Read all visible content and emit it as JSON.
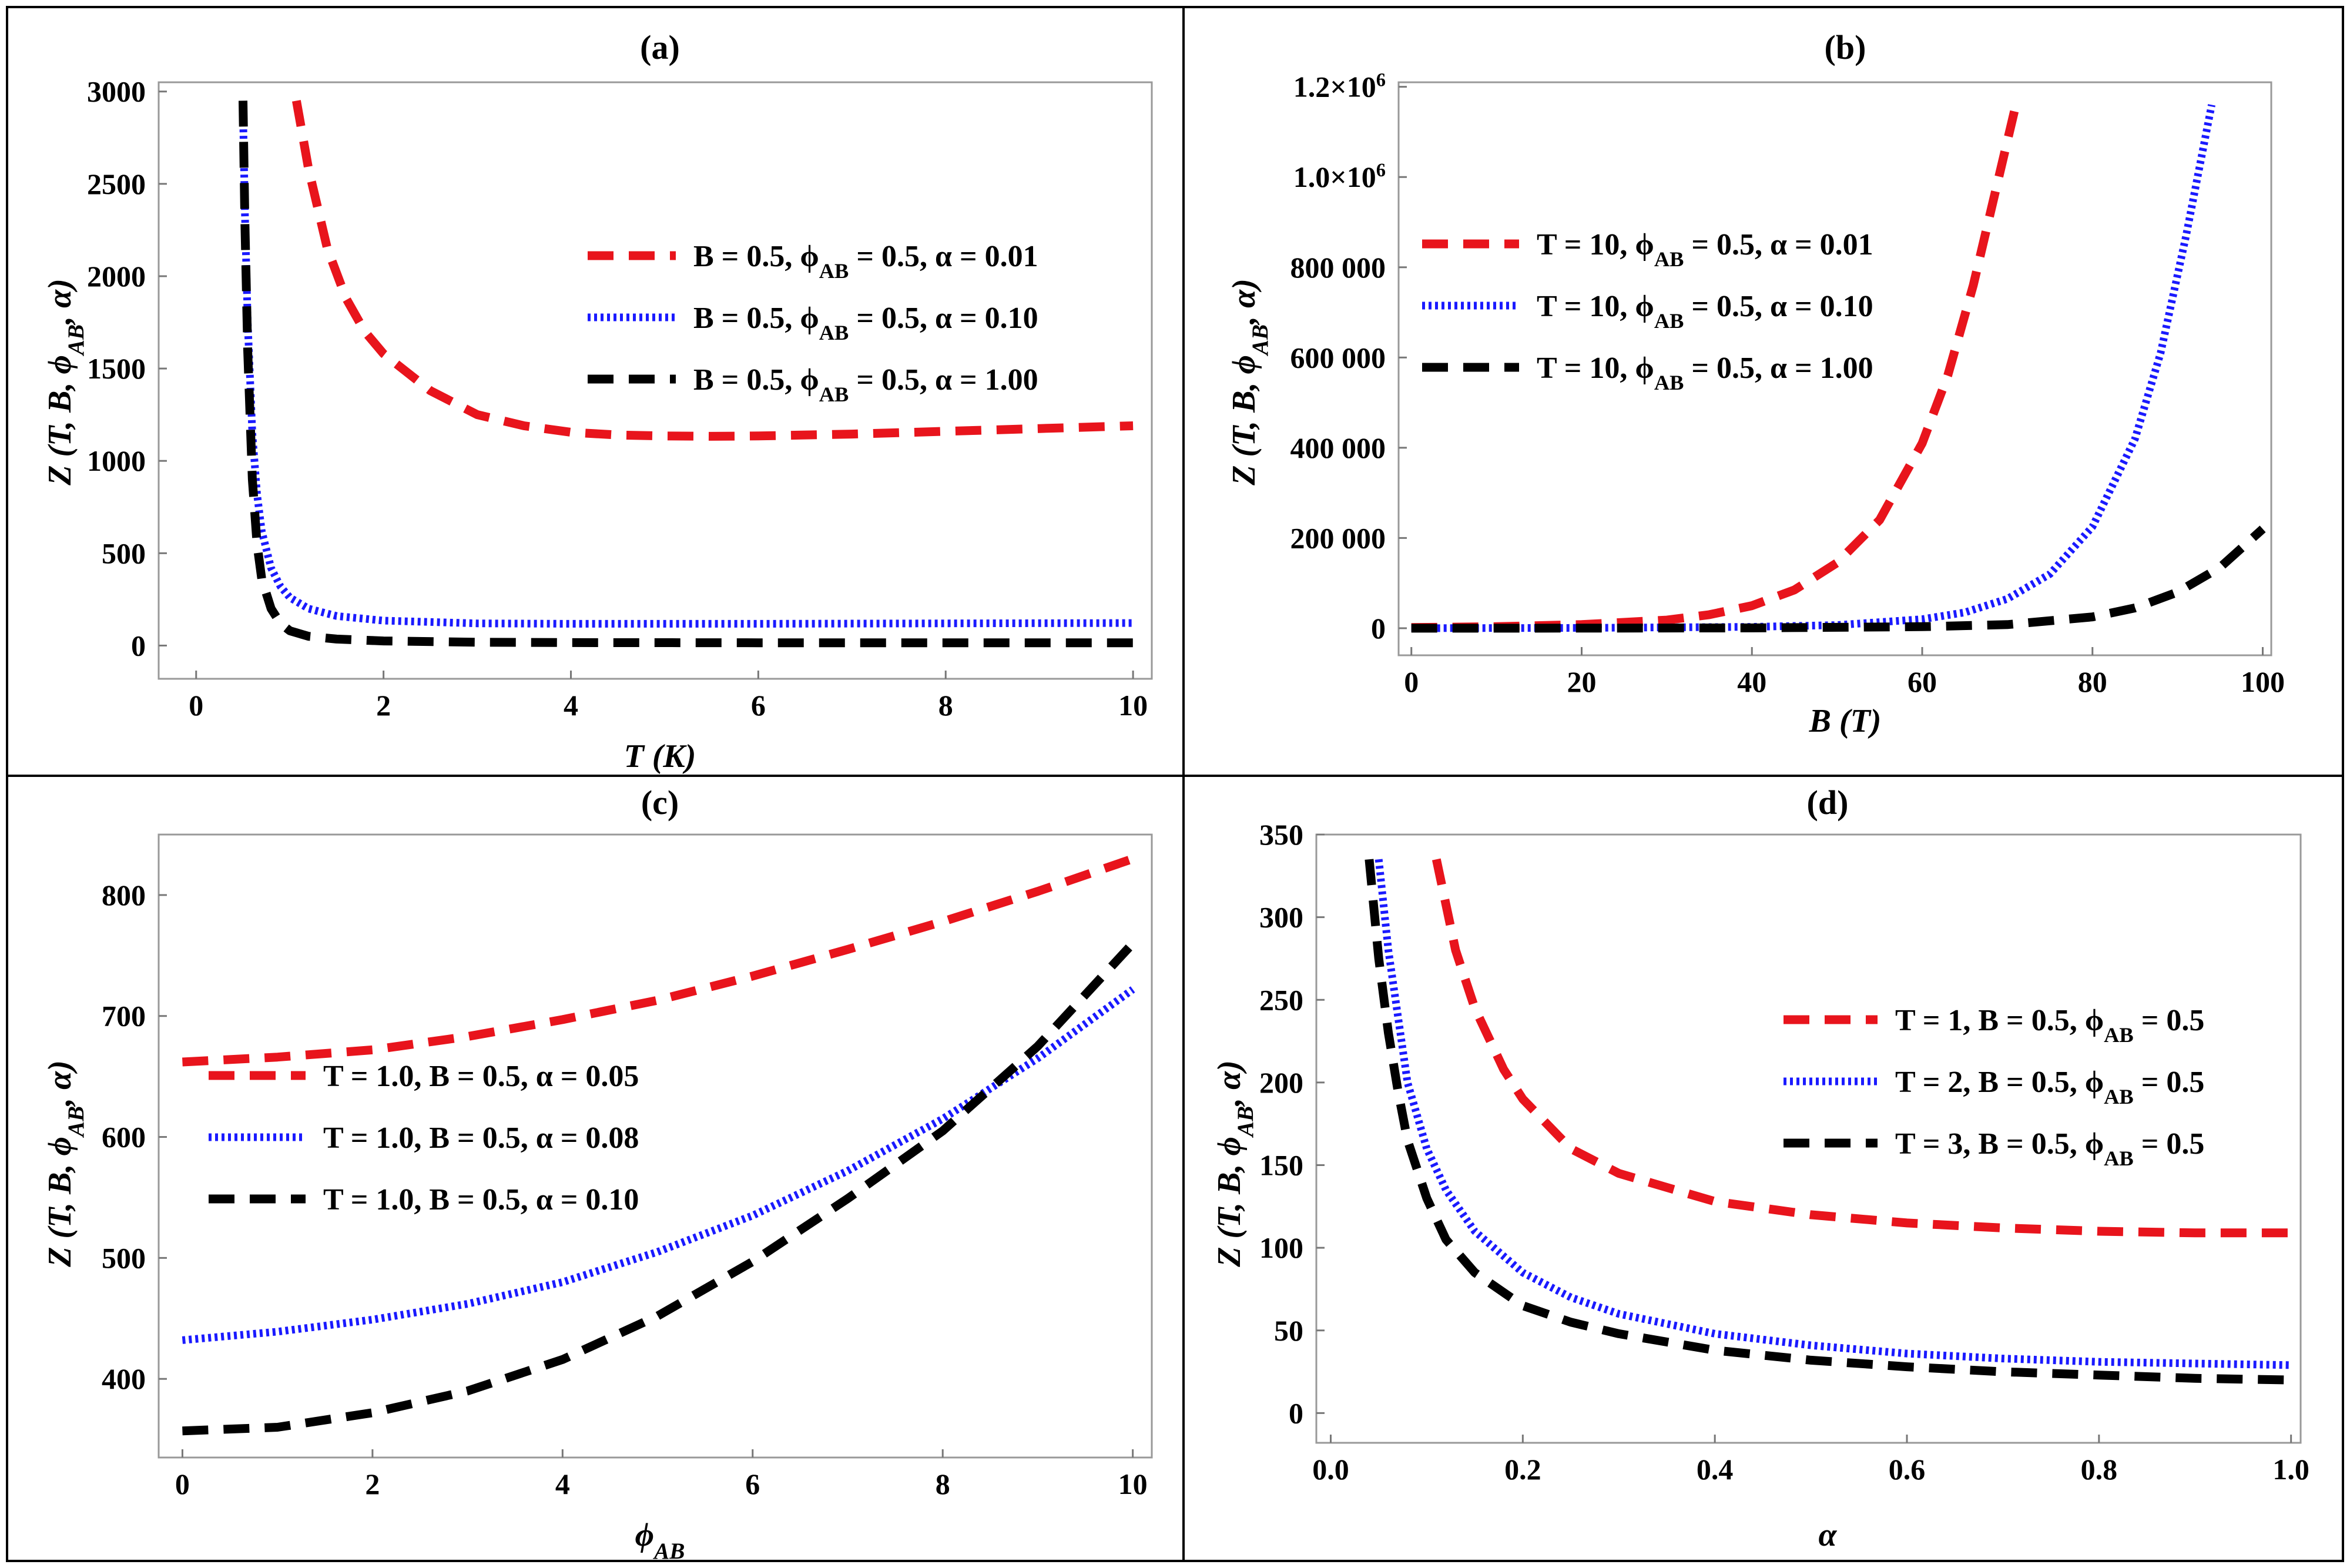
{
  "colors": {
    "red": "#e8141c",
    "blue": "#1a1aff",
    "black": "#000000"
  },
  "chart_data": [
    {
      "type": "line",
      "title": "(a)",
      "xlabel": "T (K)",
      "ylabel": "Z (T, B, ϕAB, α)",
      "xlim": [
        -0.4,
        10.2
      ],
      "ylim": [
        -180,
        3050
      ],
      "xticks": [
        0,
        2,
        4,
        6,
        8,
        10
      ],
      "yticks": [
        0,
        500,
        1000,
        1500,
        2000,
        2500,
        3000
      ],
      "ytick_labels": [
        "0",
        "500",
        "1000",
        "1500",
        "2000",
        "2500",
        "3000"
      ],
      "legend_position": "upper-right",
      "series": [
        {
          "name": "B = 0.5, ϕAB = 0.5, α = 0.01",
          "color": "red",
          "style": "dashed",
          "x": [
            1.07,
            1.2,
            1.4,
            1.6,
            1.8,
            2.0,
            2.5,
            3.0,
            3.5,
            4.0,
            4.5,
            5.0,
            5.5,
            6.0,
            7.0,
            8.0,
            9.0,
            10.0
          ],
          "y": [
            2950,
            2580,
            2150,
            1880,
            1700,
            1580,
            1380,
            1250,
            1190,
            1155,
            1140,
            1135,
            1133,
            1135,
            1145,
            1160,
            1175,
            1190
          ]
        },
        {
          "name": "B = 0.5, ϕAB = 0.5, α = 0.10",
          "color": "blue",
          "style": "dotted",
          "x": [
            0.5,
            0.52,
            0.55,
            0.6,
            0.65,
            0.7,
            0.8,
            0.9,
            1.0,
            1.2,
            1.5,
            2.0,
            3.0,
            4.0,
            6.0,
            8.0,
            10.0
          ],
          "y": [
            2900,
            2350,
            1750,
            1150,
            820,
            620,
            420,
            320,
            260,
            200,
            160,
            135,
            120,
            118,
            118,
            120,
            122
          ]
        },
        {
          "name": "B = 0.5, ϕAB = 0.5, α = 1.00",
          "color": "black",
          "style": "dashed",
          "x": [
            0.5,
            0.52,
            0.55,
            0.6,
            0.65,
            0.7,
            0.8,
            0.9,
            1.0,
            1.2,
            1.5,
            2.0,
            3.0,
            4.0,
            6.0,
            8.0,
            10.0
          ],
          "y": [
            2950,
            2300,
            1600,
            900,
            550,
            360,
            200,
            120,
            80,
            50,
            35,
            25,
            18,
            16,
            15,
            15,
            15
          ]
        }
      ]
    },
    {
      "type": "line",
      "title": "(b)",
      "xlabel": "B (T)",
      "ylabel": "Z (T, B, ϕAB, α)",
      "xlim": [
        -1.5,
        101
      ],
      "ylim": [
        -60000,
        1210000
      ],
      "xticks": [
        0,
        20,
        40,
        60,
        80,
        100
      ],
      "yticks": [
        0,
        200000,
        400000,
        600000,
        800000,
        1000000,
        1200000
      ],
      "ytick_labels": [
        "0",
        "200 000",
        "400 000",
        "600 000",
        "800 000",
        "1.0×10",
        "1.2×10"
      ],
      "ytick_exponent": "6",
      "legend_position": "upper-left",
      "series": [
        {
          "name": "T = 10, ϕAB = 0.5, α = 0.01",
          "color": "red",
          "style": "dashed",
          "x": [
            0,
            10,
            20,
            30,
            35,
            40,
            45,
            50,
            55,
            60,
            63,
            66,
            69,
            71
          ],
          "y": [
            1500,
            3500,
            8000,
            18000,
            30000,
            50000,
            85000,
            145000,
            240000,
            410000,
            560000,
            760000,
            1000000,
            1160000
          ]
        },
        {
          "name": "T = 10, ϕAB = 0.5, α = 0.10",
          "color": "blue",
          "style": "dotted",
          "x": [
            0,
            20,
            40,
            50,
            60,
            65,
            70,
            75,
            80,
            85,
            88,
            91,
            94
          ],
          "y": [
            0,
            700,
            3000,
            7000,
            20000,
            35000,
            65000,
            120000,
            225000,
            420000,
            610000,
            870000,
            1160000
          ]
        },
        {
          "name": "T = 10, ϕAB = 0.5, α = 1.00",
          "color": "black",
          "style": "dashed",
          "x": [
            0,
            20,
            40,
            60,
            70,
            80,
            85,
            90,
            95,
            100
          ],
          "y": [
            0,
            150,
            700,
            3500,
            8000,
            25000,
            45000,
            80000,
            135000,
            220000
          ]
        }
      ]
    },
    {
      "type": "line",
      "title": "(c)",
      "xlabel": "ϕAB",
      "ylabel": "Z (T, B, ϕAB, α)",
      "xlim": [
        -0.25,
        10.2
      ],
      "ylim": [
        335,
        850
      ],
      "xticks": [
        0,
        2,
        4,
        6,
        8,
        10
      ],
      "yticks": [
        400,
        500,
        600,
        700,
        800
      ],
      "ytick_labels": [
        "400",
        "500",
        "600",
        "700",
        "800"
      ],
      "legend_position": "center-left",
      "series": [
        {
          "name": "T = 1.0, B = 0.5, α = 0.05",
          "color": "red",
          "style": "dashed",
          "x": [
            0,
            1,
            2,
            3,
            4,
            5,
            6,
            7,
            8,
            9,
            10
          ],
          "y": [
            662,
            666,
            672,
            683,
            697,
            713,
            733,
            755,
            778,
            803,
            830
          ]
        },
        {
          "name": "T = 1.0, B = 0.5, α = 0.08",
          "color": "blue",
          "style": "dotted",
          "x": [
            0,
            1,
            2,
            3,
            4,
            5,
            6,
            7,
            8,
            9,
            10
          ],
          "y": [
            432,
            439,
            449,
            462,
            480,
            505,
            535,
            572,
            615,
            665,
            722
          ]
        },
        {
          "name": "T = 1.0, B = 0.5, α = 0.10",
          "color": "black",
          "style": "dashed",
          "x": [
            0,
            1,
            2,
            3,
            4,
            5,
            6,
            7,
            8,
            9,
            10
          ],
          "y": [
            357,
            360,
            372,
            390,
            416,
            452,
            497,
            549,
            605,
            675,
            760
          ]
        }
      ]
    },
    {
      "type": "line",
      "title": "(d)",
      "xlabel": "α",
      "ylabel": "Z (T, B, ϕAB, α)",
      "xlim": [
        -0.015,
        1.01
      ],
      "ylim": [
        -18,
        350
      ],
      "xticks": [
        0.0,
        0.2,
        0.4,
        0.6,
        0.8,
        1.0
      ],
      "xtick_labels": [
        "0.0",
        "0.2",
        "0.4",
        "0.6",
        "0.8",
        "1.0"
      ],
      "yticks": [
        0,
        50,
        100,
        150,
        200,
        250,
        300,
        350
      ],
      "ytick_labels": [
        "0",
        "50",
        "100",
        "150",
        "200",
        "250",
        "300",
        "350"
      ],
      "legend_position": "right",
      "series": [
        {
          "name": "T = 1, B = 0.5, ϕAB = 0.5",
          "color": "red",
          "style": "dashed",
          "x": [
            0.11,
            0.13,
            0.15,
            0.18,
            0.2,
            0.25,
            0.3,
            0.4,
            0.5,
            0.6,
            0.7,
            0.8,
            0.9,
            1.0
          ],
          "y": [
            335,
            280,
            245,
            208,
            190,
            160,
            145,
            128,
            120,
            115,
            112,
            110,
            109,
            109
          ]
        },
        {
          "name": "T = 2, B = 0.5, ϕAB = 0.5",
          "color": "blue",
          "style": "dotted",
          "x": [
            0.05,
            0.06,
            0.07,
            0.08,
            0.1,
            0.12,
            0.15,
            0.2,
            0.25,
            0.3,
            0.4,
            0.5,
            0.6,
            0.7,
            0.8,
            0.9,
            1.0
          ],
          "y": [
            335,
            280,
            240,
            200,
            160,
            135,
            110,
            85,
            70,
            60,
            48,
            41,
            36,
            33,
            31,
            30,
            29
          ]
        },
        {
          "name": "T = 3, B = 0.5, ϕAB = 0.5",
          "color": "black",
          "style": "dashed",
          "x": [
            0.04,
            0.05,
            0.06,
            0.07,
            0.08,
            0.1,
            0.12,
            0.15,
            0.2,
            0.25,
            0.3,
            0.4,
            0.5,
            0.6,
            0.7,
            0.8,
            0.9,
            1.0
          ],
          "y": [
            335,
            275,
            230,
            195,
            165,
            130,
            105,
            85,
            65,
            55,
            48,
            38,
            32,
            28,
            25,
            23,
            21,
            20
          ]
        }
      ]
    }
  ]
}
